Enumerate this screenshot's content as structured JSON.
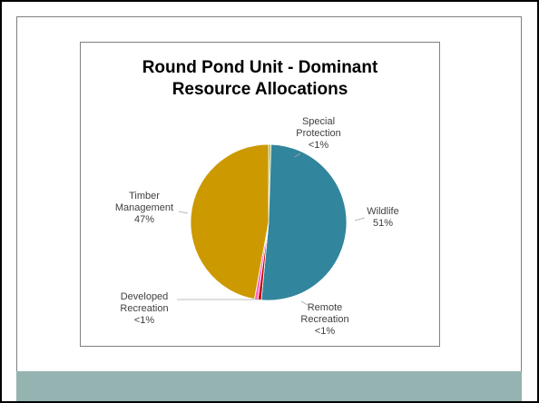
{
  "slide": {
    "footer_color": "#95b3b0"
  },
  "chart_data": {
    "type": "pie",
    "title": "Round Pond Unit - Dominant Resource Allocations",
    "title_lines": [
      "Round Pond Unit - Dominant",
      "Resource Allocations"
    ],
    "slices": [
      {
        "name": "Special Protection",
        "label_lines": [
          "Special",
          "Protection",
          "<1%"
        ],
        "value": 0.5,
        "color": "#9bbb59"
      },
      {
        "name": "Wildlife",
        "label_lines": [
          "Wildlife",
          "51%"
        ],
        "value": 51,
        "color": "#31859c"
      },
      {
        "name": "Remote Recreation",
        "label_lines": [
          "Remote",
          "Recreation",
          "<1%"
        ],
        "value": 0.7,
        "color": "#c00000"
      },
      {
        "name": "Developed Recreation",
        "label_lines": [
          "Developed",
          "Recreation",
          "<1%"
        ],
        "value": 0.7,
        "color": "#ff66cc"
      },
      {
        "name": "Timber Management",
        "label_lines": [
          "Timber",
          "Management",
          "47%"
        ],
        "value": 47.1,
        "color": "#cc9900"
      }
    ],
    "legend": "none"
  }
}
